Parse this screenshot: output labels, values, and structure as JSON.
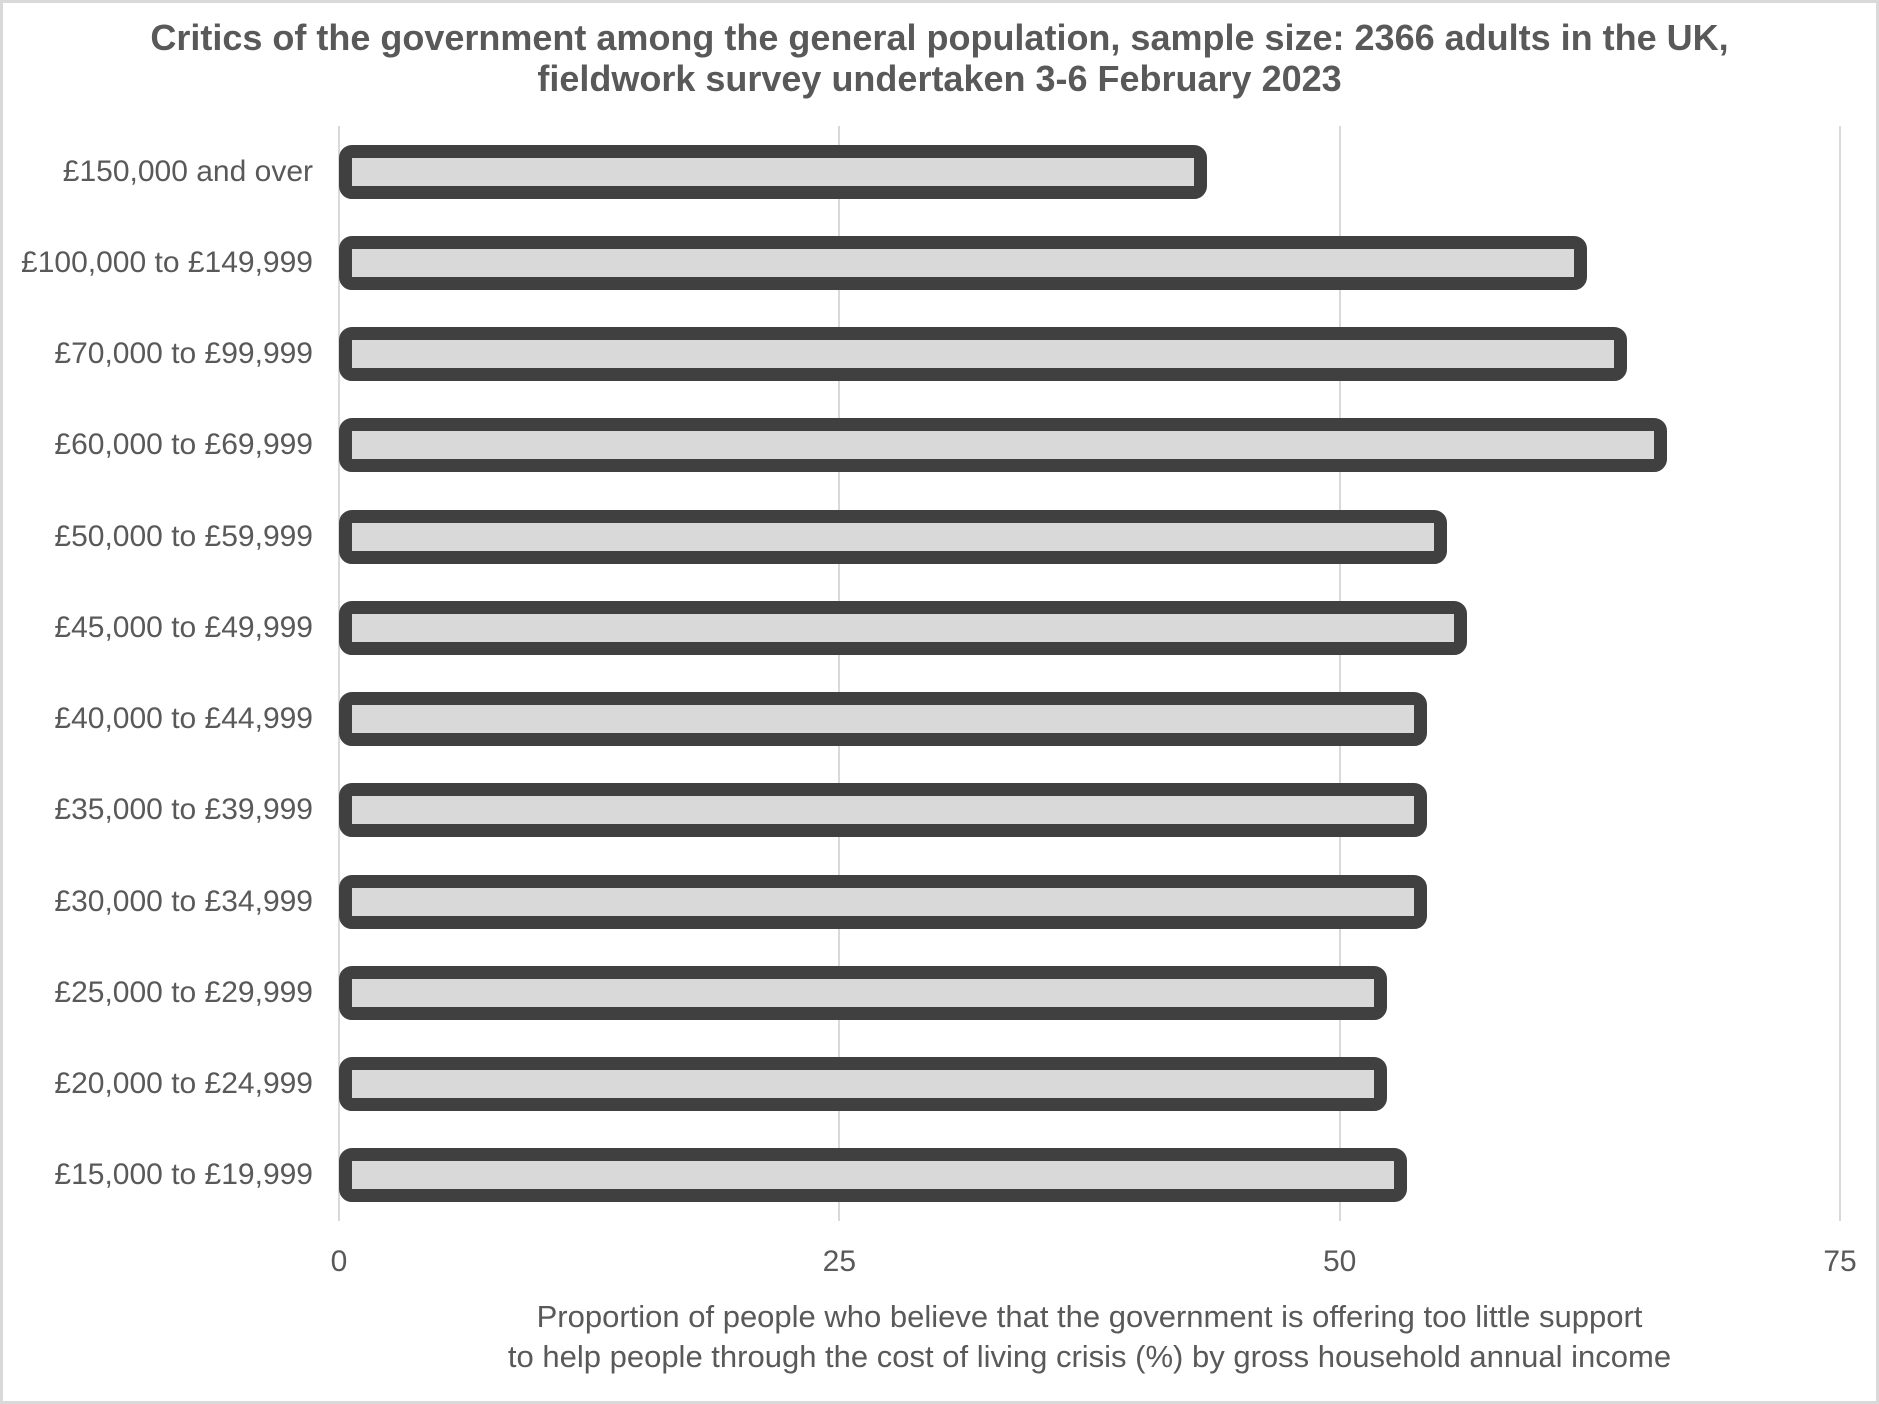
{
  "title": {
    "line1": "Critics of the government among the general population, sample size: 2366 adults in the UK,",
    "line2": "fieldwork survey undertaken 3-6 February 2023"
  },
  "x_axis": {
    "title_line1": "Proportion of people who believe that the government is offering too little support",
    "title_line2": "to help people through the cost of living crisis (%) by gross household annual income"
  },
  "chart_data": {
    "type": "bar",
    "orientation": "horizontal",
    "title": "Critics of the government among the general population, sample size: 2366 adults in the UK, fieldwork survey undertaken 3-6 February 2023",
    "categories": [
      "£150,000 and over",
      "£100,000 to £149,999",
      "£70,000 to £99,999",
      "£60,000 to £69,999",
      "£50,000 to £59,999",
      "£45,000 to £49,999",
      "£40,000 to £44,999",
      "£35,000 to £39,999",
      "£30,000 to £34,999",
      "£25,000 to £29,999",
      "£20,000 to £24,999",
      "£15,000 to £19,999"
    ],
    "values": [
      43,
      62,
      64,
      66,
      55,
      56,
      54,
      54,
      54,
      52,
      52,
      53
    ],
    "xlabel": "Proportion of people who believe that the government is offering too little support to help people through the cost of living crisis (%) by gross household annual income",
    "ylabel": "",
    "xlim": [
      0,
      75
    ],
    "xticks": [
      0,
      25,
      50,
      75
    ],
    "grid": true,
    "legend": false
  },
  "colors": {
    "bar_fill": "#d9d9d9",
    "bar_border": "#404040",
    "gridline": "#d9d9d9",
    "text": "#595959",
    "frame_border": "#d9d9d9",
    "background": "#ffffff"
  }
}
